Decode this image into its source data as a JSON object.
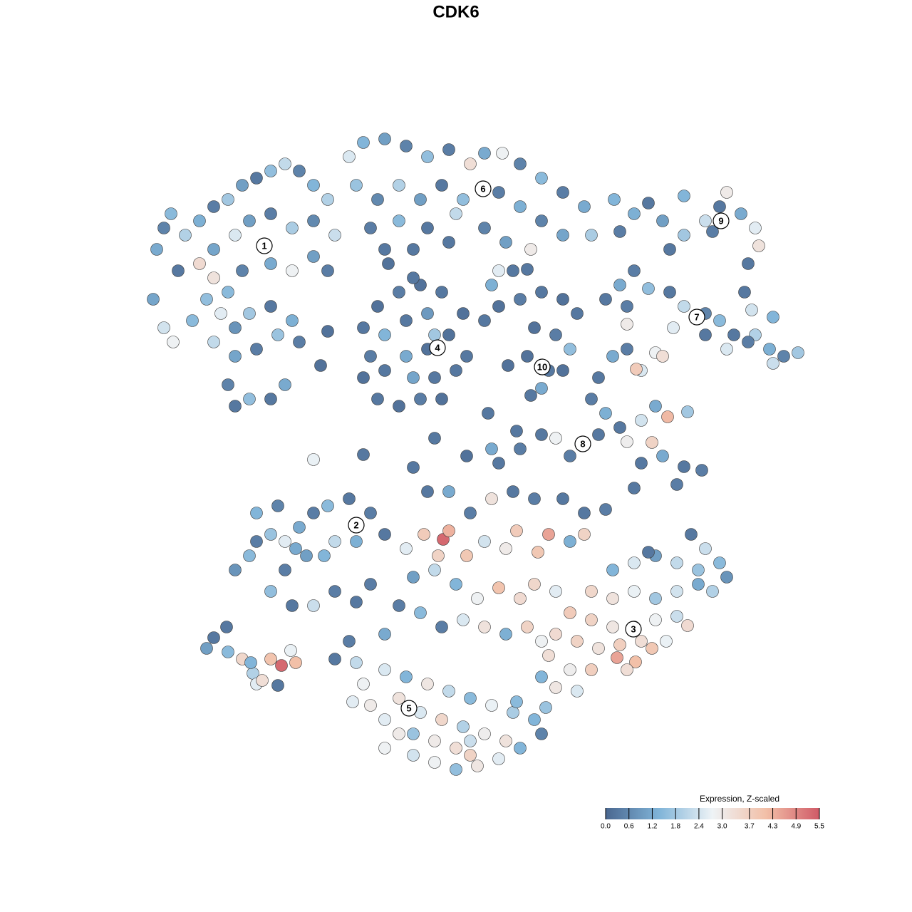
{
  "chart_data": {
    "type": "scatter",
    "title": "CDK6",
    "colorbar_title": "Expression, Z-scaled",
    "clim": [
      0,
      5.5
    ],
    "colormap": [
      "#4a6790",
      "#80b4d8",
      "#eef3f6",
      "#f2bfa7",
      "#d05a67"
    ],
    "cticks": [
      {
        "value": 0,
        "label": "0.0"
      },
      0.6,
      1.2,
      1.8,
      2.4,
      {
        "value": 3,
        "label": "3.0"
      },
      3.7,
      4.3,
      4.9,
      5.5
    ],
    "xlim": [
      0,
      1280
    ],
    "ylim": [
      1280,
      0
    ],
    "clusters": [
      {
        "label": "1",
        "x": 371,
        "y": 345
      },
      {
        "label": "2",
        "x": 500,
        "y": 737
      },
      {
        "label": "3",
        "x": 889,
        "y": 883
      },
      {
        "label": "4",
        "x": 614,
        "y": 488
      },
      {
        "label": "5",
        "x": 574,
        "y": 994
      },
      {
        "label": "6",
        "x": 678,
        "y": 265
      },
      {
        "label": "7",
        "x": 978,
        "y": 445
      },
      {
        "label": "8",
        "x": 818,
        "y": 623
      },
      {
        "label": "9",
        "x": 1012,
        "y": 310
      },
      {
        "label": "10",
        "x": 761,
        "y": 515
      }
    ],
    "x": [
      220,
      230,
      240,
      250,
      215,
      230,
      260,
      280,
      300,
      320,
      340,
      360,
      380,
      400,
      420,
      440,
      460,
      300,
      330,
      350,
      380,
      410,
      440,
      470,
      280,
      300,
      320,
      340,
      380,
      410,
      440,
      460,
      290,
      310,
      330,
      350,
      380,
      410,
      300,
      330,
      360,
      390,
      320,
      350,
      380,
      400,
      330,
      420,
      243,
      270,
      490,
      510,
      540,
      570,
      600,
      630,
      660,
      680,
      705,
      730,
      760,
      790,
      820,
      830,
      500,
      530,
      560,
      590,
      620,
      650,
      700,
      730,
      760,
      790,
      520,
      560,
      600,
      640,
      680,
      710,
      540,
      580,
      630,
      700,
      690,
      745,
      740,
      510,
      530,
      560,
      590,
      620,
      650,
      520,
      540,
      570,
      600,
      630,
      655,
      510,
      540,
      570,
      600,
      610,
      640,
      530,
      560,
      590,
      620,
      580,
      610,
      450,
      460,
      545,
      580,
      680,
      700,
      730,
      760,
      790,
      810,
      750,
      780,
      800,
      740,
      770,
      760,
      745,
      790,
      713,
      720,
      870,
      890,
      910,
      930,
      960,
      990,
      1010,
      1020,
      1040,
      1060,
      1065,
      1050,
      1000,
      940,
      960,
      862,
      1045,
      850,
      870,
      890,
      910,
      940,
      960,
      990,
      1010,
      1030,
      1060,
      1080,
      1100,
      1120,
      1085,
      1050,
      1020,
      990,
      945,
      880,
      1055,
      1085,
      880,
      840,
      860,
      880,
      900,
      920,
      930,
      893,
      830,
      850,
      870,
      900,
      920,
      937,
      965,
      880,
      915,
      900,
      930,
      960,
      985,
      890,
      950,
      780,
      800,
      760,
      840,
      600,
      630,
      660,
      690,
      720,
      750,
      790,
      820,
      850,
      700,
      730,
      690,
      655,
      580,
      510,
      440,
      610,
      685,
      725,
      330,
      350,
      360,
      380,
      400,
      420,
      440,
      460,
      490,
      520,
      540,
      500,
      470,
      430,
      400,
      380,
      410,
      440,
      470,
      360,
      390,
      415,
      455,
      570,
      595,
      622,
      630,
      615,
      655,
      680,
      710,
      725,
      755,
      770,
      800,
      820,
      580,
      610,
      640,
      670,
      700,
      730,
      750,
      780,
      560,
      590,
      620,
      650,
      680,
      710,
      740,
      760,
      540,
      520,
      500,
      860,
      890,
      920,
      950,
      980,
      1010,
      1020,
      970,
      990,
      830,
      860,
      890,
      920,
      950,
      980,
      1000,
      800,
      830,
      860,
      890,
      920,
      950,
      965,
      780,
      810,
      840,
      870,
      900,
      915,
      935,
      770,
      800,
      830,
      866,
      892,
      880,
      780,
      810,
      760,
      910,
      490,
      500,
      510,
      520,
      540,
      560,
      580,
      610,
      640,
      670,
      700,
      730,
      760,
      540,
      570,
      600,
      630,
      660,
      690,
      720,
      750,
      560,
      590,
      620,
      650,
      680,
      710,
      580,
      610,
      640,
      660,
      540,
      470,
      495,
      725,
      766,
      660,
      290,
      300,
      318,
      320,
      340,
      355,
      360,
      380,
      395,
      415,
      408,
      390,
      368,
      352
    ],
    "values": [
      350,
      320,
      300,
      380,
      420,
      460,
      330,
      310,
      290,
      280,
      260,
      250,
      240,
      230,
      240,
      260,
      280,
      350,
      330,
      310,
      300,
      320,
      310,
      330,
      370,
      390,
      410,
      380,
      370,
      380,
      360,
      380,
      420,
      440,
      460,
      440,
      430,
      450,
      480,
      500,
      490,
      470,
      540,
      560,
      560,
      540,
      570,
      480,
      480,
      450,
      220,
      200,
      195,
      205,
      220,
      210,
      230,
      215,
      215,
      230,
      250,
      270,
      290,
      330,
      260,
      280,
      260,
      280,
      260,
      280,
      270,
      290,
      310,
      330,
      320,
      310,
      320,
      300,
      320,
      340,
      350,
      350,
      340,
      380,
      400,
      350,
      378,
      460,
      430,
      410,
      400,
      410,
      440,
      500,
      470,
      450,
      440,
      470,
      500,
      530,
      520,
      500,
      490,
      470,
      520,
      560,
      570,
      560,
      560,
      530,
      530,
      513,
      465,
      370,
      390,
      450,
      430,
      420,
      410,
      420,
      440,
      460,
      470,
      490,
      500,
      520,
      545,
      555,
      520,
      513,
      380,
      325,
      300,
      285,
      310,
      330,
      310,
      290,
      270,
      300,
      320,
      345,
      370,
      325,
      350,
      275,
      280,
      410,
      420,
      400,
      380,
      405,
      410,
      430,
      440,
      450,
      470,
      470,
      490,
      500,
      495,
      510,
      480,
      490,
      470,
      460,
      455,
      435,
      445,
      430,
      530,
      500,
      490,
      520,
      495,
      500,
      518,
      560,
      580,
      600,
      590,
      570,
      585,
      578,
      620,
      621,
      650,
      640,
      655,
      660,
      685,
      680,
      615,
      640,
      610,
      610,
      690,
      690,
      720,
      700,
      690,
      700,
      700,
      720,
      715,
      650,
      630,
      630,
      640,
      656,
      638,
      645,
      615,
      580,
      605,
      800,
      780,
      760,
      750,
      760,
      740,
      720,
      710,
      700,
      720,
      750,
      760,
      760,
      780,
      800,
      830,
      850,
      850,
      830,
      720,
      710,
      770,
      780,
      770,
      750,
      757,
      745,
      780,
      780,
      760,
      770,
      745,
      775,
      750,
      760,
      750,
      810,
      800,
      820,
      840,
      825,
      840,
      820,
      830,
      850,
      860,
      880,
      870,
      880,
      890,
      880,
      900,
      890,
      820,
      845,
      800,
      790,
      780,
      790,
      800,
      790,
      810,
      750,
      770,
      830,
      840,
      830,
      840,
      830,
      820,
      830,
      860,
      870,
      880,
      880,
      870,
      865,
      878,
      890,
      900,
      910,
      905,
      900,
      910,
      900,
      920,
      940,
      940,
      923,
      929,
      940,
      965,
      970,
      950,
      775,
      900,
      930,
      960,
      990,
      1010,
      1030,
      1060,
      1070,
      1080,
      1075,
      1065,
      1050,
      1030,
      940,
      950,
      960,
      970,
      980,
      990,
      1000,
      1010,
      980,
      1000,
      1010,
      1020,
      1030,
      1040,
      1030,
      1040,
      1050,
      1060,
      1050,
      925,
      985,
      985,
      993,
      1040,
      910,
      895,
      880,
      915,
      925,
      945,
      960,
      925,
      934,
      930,
      913,
      962,
      955,
      930
    ],
    "z": [
      1.2,
      0.5,
      1.5,
      0.3,
      1.1,
      2.4,
      2.0,
      1.3,
      0.4,
      1.8,
      1.0,
      0.3,
      1.6,
      2.2,
      0.5,
      1.4,
      2.0,
      1.1,
      2.5,
      1.0,
      0.4,
      1.9,
      0.6,
      2.3,
      3.4,
      3.2,
      1.5,
      0.5,
      1.2,
      2.8,
      1.0,
      0.4,
      1.6,
      2.6,
      0.8,
      1.8,
      0.3,
      1.3,
      2.2,
      1.1,
      0.4,
      1.7,
      0.5,
      1.6,
      0.3,
      1.2,
      0.3,
      0.4,
      2.8,
      1.5,
      2.5,
      1.4,
      1.0,
      0.5,
      1.6,
      0.4,
      3.3,
      1.2,
      2.8,
      0.5,
      1.5,
      0.4,
      1.2,
      1.9,
      1.7,
      0.6,
      2.0,
      1.0,
      0.3,
      1.6,
      0.4,
      1.3,
      0.5,
      1.1,
      0.4,
      1.5,
      0.3,
      2.2,
      0.5,
      1.0,
      0.3,
      0.3,
      0.3,
      2.6,
      1.3,
      3.0,
      0.3,
      0.3,
      0.2,
      0.4,
      0.2,
      0.3,
      0.2,
      0.4,
      1.4,
      0.3,
      0.9,
      0.2,
      0.3,
      0.2,
      0.3,
      1.2,
      0.2,
      1.8,
      0.3,
      0.3,
      0.2,
      0.4,
      0.2,
      1.1,
      0.3,
      0.2,
      0.2,
      0.2,
      0.3,
      0.3,
      0.2,
      0.4,
      0.3,
      0.2,
      0.3,
      0.2,
      0.4,
      1.6,
      0.2,
      0.3,
      1.2,
      0.3,
      0.2,
      0.2,
      0.3,
      0.4,
      1.3,
      0.3,
      1.0,
      1.8,
      2.3,
      0.3,
      3.0,
      1.2,
      2.6,
      3.2,
      0.3,
      0.4,
      0.3,
      1.4,
      1.4,
      0.3,
      0.3,
      1.2,
      0.4,
      1.6,
      0.3,
      2.2,
      0.5,
      1.5,
      0.3,
      2.0,
      1.3,
      0.5,
      1.8,
      2.3,
      0.4,
      2.5,
      0.3,
      2.6,
      3.0,
      2.4,
      1.4,
      0.4,
      0.3,
      1.2,
      0.4,
      2.5,
      2.8,
      3.3,
      3.8,
      0.4,
      1.3,
      0.3,
      2.4,
      1.2,
      4.2,
      1.8,
      2.9,
      3.6,
      0.3,
      1.2,
      0.3,
      0.4,
      0.3,
      0.4,
      2.8,
      0.4,
      0.3,
      0.3,
      0.3,
      1.2,
      0.4,
      3.2,
      0.3,
      0.4,
      0.3,
      0.3,
      0.4,
      0.3,
      0.4,
      1.2,
      0.2,
      0.3,
      0.3,
      2.7,
      0.3,
      0.3,
      0.3,
      0.8,
      1.5,
      0.4,
      1.7,
      2.6,
      1.2,
      0.4,
      1.5,
      0.3,
      0.4,
      0.3,
      1.3,
      2.2,
      1.0,
      0.4,
      1.6,
      0.3,
      2.3,
      0.4,
      1.4,
      0.5,
      1.2,
      1.4,
      2.6,
      3.8,
      5.3,
      4.3,
      3.6,
      3.9,
      2.4,
      3.0,
      3.8,
      3.9,
      4.5,
      1.3,
      3.6,
      1.0,
      2.2,
      1.4,
      2.8,
      4.0,
      3.4,
      3.5,
      2.6,
      0.4,
      1.5,
      0.4,
      2.5,
      3.2,
      1.3,
      3.6,
      2.8,
      1.2,
      0.4,
      0.3,
      1.4,
      2.5,
      1.0,
      2.2,
      1.7,
      1.5,
      0.8,
      0.3,
      2.3,
      3.5,
      3.2,
      2.7,
      1.8,
      2.4,
      1.2,
      2.0,
      3.8,
      3.6,
      3.1,
      3.0,
      2.8,
      2.3,
      3.4,
      3.4,
      3.6,
      3.2,
      3.7,
      3.3,
      3.9,
      2.7,
      3.3,
      2.9,
      3.7,
      4.5,
      4.1,
      3.3,
      3.1,
      2.5,
      1.4,
      0.3,
      0.4,
      2.2,
      2.8,
      3.0,
      2.6,
      3.0,
      2.4,
      2.8,
      1.6,
      3.1,
      2.6,
      1.4,
      0.5,
      2.5,
      1.4,
      3.1,
      2.2,
      1.5,
      2.7,
      1.9,
      1.4,
      3.2,
      2.5,
      3.5,
      2.0,
      2.9,
      3.2,
      1.7,
      3.0,
      3.3,
      3.6,
      2.8,
      0.3,
      2.6,
      1.5,
      1.7,
      2.3,
      1.0,
      0.3,
      0.3,
      1.5,
      3.5,
      2.0,
      2.6,
      4.0,
      5.3,
      4.1,
      2.7,
      0.3,
      3.3,
      1.4
    ]
  }
}
